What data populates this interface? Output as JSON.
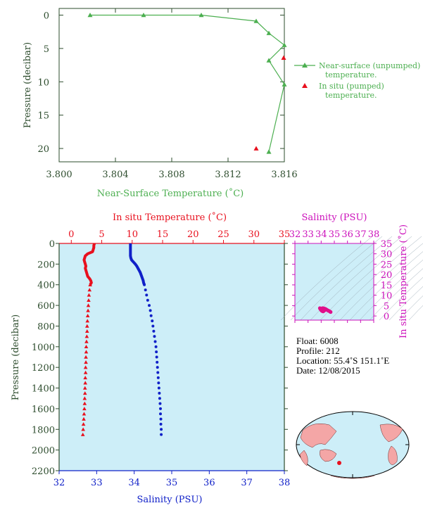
{
  "colors": {
    "green": "#4caf50",
    "axis_green": "#2e4d2e",
    "red": "#e8101e",
    "blue": "#1020c8",
    "magenta": "#cc11bb",
    "plot_bg": "#cdeef8",
    "land": "#f4a6a6",
    "ocean": "#cdeef8"
  },
  "chart_data": [
    {
      "id": "near_surface",
      "type": "line",
      "xlabel": "Near-Surface Temperature (˚C)",
      "ylabel": "Pressure (decibar)",
      "xlim": [
        3.8,
        3.816
      ],
      "ylim": [
        22,
        -1
      ],
      "xticks": [
        "3.800",
        "3.804",
        "3.808",
        "3.812",
        "3.816"
      ],
      "yticks": [
        0,
        5,
        10,
        15,
        20
      ],
      "series": [
        {
          "name": "Near-surface (unpumped) temperature.",
          "marker": "triangle-line",
          "points": [
            [
              3.8022,
              0.0
            ],
            [
              3.806,
              0.0
            ],
            [
              3.8101,
              0.0
            ],
            [
              3.814,
              0.9
            ],
            [
              3.8149,
              2.7
            ],
            [
              3.816,
              4.5
            ],
            [
              3.8149,
              6.8
            ],
            [
              3.816,
              10.4
            ],
            [
              3.8149,
              20.5
            ]
          ]
        },
        {
          "name": "In situ (pumped) temperature.",
          "marker": "triangle",
          "points": [
            [
              3.816,
              6.4
            ],
            [
              3.814,
              20.0
            ]
          ]
        }
      ],
      "legend_position": "right"
    },
    {
      "id": "profile",
      "type": "scatter",
      "ylabel": "Pressure (decibar)",
      "ylim": [
        2200,
        0
      ],
      "yticks": [
        0,
        200,
        400,
        600,
        800,
        1000,
        1200,
        1400,
        1600,
        1800,
        2000,
        2200
      ],
      "top_axis": {
        "label": "In situ Temperature (˚C)",
        "range": [
          -2,
          35
        ],
        "ticks": [
          0,
          5,
          10,
          15,
          20,
          25,
          30,
          35
        ]
      },
      "bottom_axis": {
        "label": "Salinity (PSU)",
        "range": [
          32,
          38
        ],
        "ticks": [
          32,
          33,
          34,
          35,
          36,
          37,
          38
        ]
      },
      "series": [
        {
          "name": "In situ Temperature",
          "axis": "top",
          "pressure": [
            0,
            20,
            40,
            60,
            80,
            100,
            120,
            140,
            160,
            180,
            200,
            220,
            240,
            260,
            280,
            300,
            320,
            340,
            360,
            380,
            400,
            450,
            500,
            550,
            600,
            650,
            700,
            750,
            800,
            850,
            900,
            950,
            1000,
            1050,
            1100,
            1150,
            1200,
            1250,
            1300,
            1350,
            1400,
            1450,
            1500,
            1550,
            1600,
            1650,
            1700,
            1750,
            1800,
            1850
          ],
          "values": [
            3.8,
            3.7,
            3.7,
            3.6,
            3.5,
            2.7,
            2.3,
            2.2,
            2.1,
            2.2,
            2.3,
            2.4,
            2.3,
            2.4,
            2.5,
            2.6,
            2.7,
            3.0,
            3.2,
            3.3,
            3.1,
            3.0,
            2.9,
            2.85,
            2.8,
            2.75,
            2.7,
            2.65,
            2.6,
            2.6,
            2.55,
            2.5,
            2.45,
            2.45,
            2.4,
            2.4,
            2.35,
            2.35,
            2.3,
            2.3,
            2.25,
            2.25,
            2.2,
            2.2,
            2.15,
            2.1,
            2.05,
            2.0,
            1.95,
            1.9
          ]
        },
        {
          "name": "Salinity",
          "axis": "bottom",
          "pressure": [
            0,
            20,
            40,
            60,
            80,
            100,
            120,
            140,
            160,
            180,
            200,
            220,
            240,
            260,
            280,
            300,
            320,
            340,
            360,
            380,
            400,
            450,
            500,
            550,
            600,
            650,
            700,
            750,
            800,
            850,
            900,
            950,
            1000,
            1050,
            1100,
            1150,
            1200,
            1250,
            1300,
            1350,
            1400,
            1450,
            1500,
            1550,
            1600,
            1650,
            1700,
            1750,
            1800,
            1850
          ],
          "values": [
            33.9,
            33.9,
            33.9,
            33.9,
            33.9,
            33.9,
            33.9,
            33.91,
            33.93,
            33.98,
            34.03,
            34.07,
            34.1,
            34.13,
            34.16,
            34.18,
            34.2,
            34.22,
            34.24,
            34.25,
            34.27,
            34.3,
            34.33,
            34.36,
            34.4,
            34.43,
            34.45,
            34.48,
            34.5,
            34.52,
            34.54,
            34.56,
            34.58,
            34.59,
            34.6,
            34.61,
            34.62,
            34.63,
            34.64,
            34.65,
            34.66,
            34.67,
            34.68,
            34.69,
            34.7,
            34.7,
            34.71,
            34.71,
            34.72,
            34.72
          ]
        }
      ]
    },
    {
      "id": "ts_diagram",
      "type": "scatter",
      "top_axis": {
        "label": "Salinity (PSU)",
        "range": [
          32,
          38
        ],
        "ticks": [
          32,
          33,
          34,
          35,
          36,
          37,
          38
        ]
      },
      "right_axis": {
        "label": "In situ Temperature (˚C)",
        "range": [
          -2,
          35
        ],
        "ticks": [
          0,
          5,
          10,
          15,
          20,
          25,
          30,
          35
        ]
      },
      "points": [
        [
          33.9,
          3.8
        ],
        [
          33.92,
          3.5
        ],
        [
          33.95,
          3.2
        ],
        [
          34.0,
          2.8
        ],
        [
          34.05,
          2.5
        ],
        [
          34.1,
          2.3
        ],
        [
          34.15,
          2.2
        ],
        [
          34.2,
          2.4
        ],
        [
          34.25,
          2.7
        ],
        [
          34.3,
          3.1
        ],
        [
          34.35,
          3.3
        ],
        [
          34.4,
          3.1
        ],
        [
          34.45,
          2.9
        ],
        [
          34.5,
          2.7
        ],
        [
          34.55,
          2.6
        ],
        [
          34.6,
          2.4
        ],
        [
          34.65,
          2.2
        ],
        [
          34.7,
          2.0
        ],
        [
          34.72,
          1.9
        ],
        [
          34.05,
          3.6
        ],
        [
          34.1,
          3.8
        ],
        [
          34.2,
          3.7
        ],
        [
          34.3,
          3.5
        ]
      ]
    }
  ],
  "legend": {
    "unpumped_line1": "Near-surface (unpumped)",
    "unpumped_line2": "temperature.",
    "pumped_line1": "In situ (pumped)",
    "pumped_line2": "temperature."
  },
  "info": {
    "float": "Float:  6008",
    "profile": "Profile:  212",
    "location": "Location:  55.4˚S  151.1˚E",
    "date": "Date:  12/08/2015"
  }
}
